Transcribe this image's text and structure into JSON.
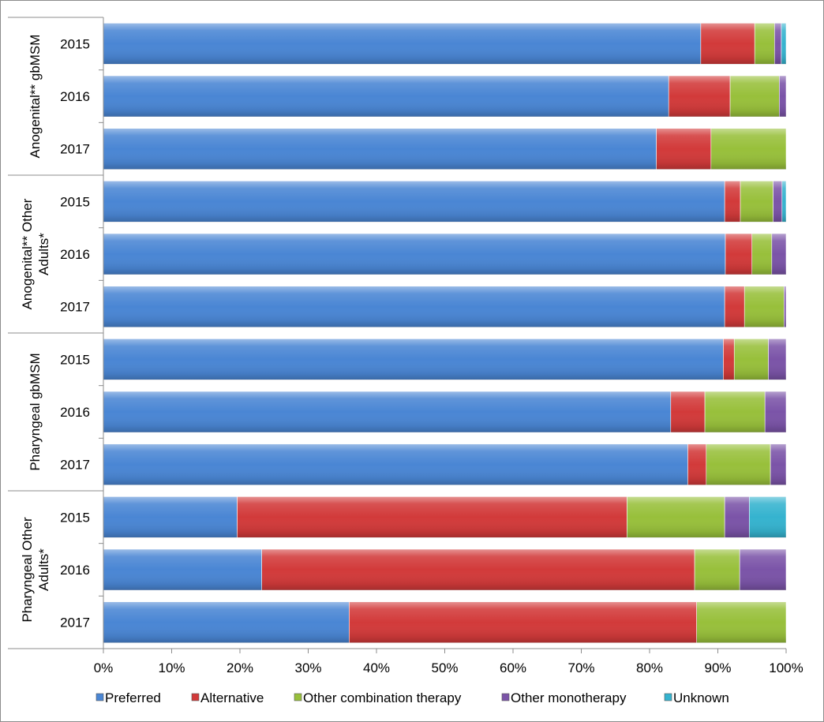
{
  "chart_data": {
    "type": "bar",
    "orientation": "horizontal",
    "stacked": "percent",
    "title": "",
    "xlabel": "",
    "ylabel": "",
    "xlim": [
      0,
      100
    ],
    "x_ticks": [
      "0%",
      "10%",
      "20%",
      "30%",
      "40%",
      "50%",
      "60%",
      "70%",
      "80%",
      "90%",
      "100%"
    ],
    "grid": false,
    "legend_position": "bottom",
    "groups": [
      {
        "label": "Anogenital** gbMSM",
        "years": [
          "2015",
          "2016",
          "2017"
        ]
      },
      {
        "label": "Anogenital** Other Adults*",
        "years": [
          "2015",
          "2016",
          "2017"
        ]
      },
      {
        "label": "Pharyngeal gbMSM",
        "years": [
          "2015",
          "2016",
          "2017"
        ]
      },
      {
        "label": "Pharyngeal Other Adults*",
        "years": [
          "2015",
          "2016",
          "2017"
        ]
      }
    ],
    "series": [
      {
        "name": "Preferred",
        "color": "#4a86d4",
        "values": [
          87.5,
          82.8,
          81.0,
          91.0,
          91.1,
          91.0,
          90.8,
          83.1,
          85.6,
          19.6,
          23.2,
          36.0
        ]
      },
      {
        "name": "Alternative",
        "color": "#d23a3a",
        "values": [
          7.9,
          9.0,
          8.0,
          2.3,
          3.9,
          2.9,
          1.6,
          5.0,
          2.7,
          57.1,
          63.4,
          50.9
        ]
      },
      {
        "name": "Other combination therapy",
        "color": "#98c03b",
        "values": [
          2.9,
          7.2,
          11.0,
          4.8,
          2.9,
          5.8,
          5.0,
          8.8,
          9.4,
          14.3,
          6.6,
          13.1
        ]
      },
      {
        "name": "Other monotherapy",
        "color": "#7b54a8",
        "values": [
          1.0,
          1.0,
          0.0,
          1.3,
          2.1,
          0.3,
          2.6,
          3.1,
          2.3,
          3.6,
          6.8,
          0.0
        ]
      },
      {
        "name": "Unknown",
        "color": "#35b3cf",
        "values": [
          0.7,
          0.0,
          0.0,
          0.6,
          0.0,
          0.0,
          0.0,
          0.0,
          0.0,
          5.4,
          0.0,
          0.0
        ]
      }
    ]
  }
}
